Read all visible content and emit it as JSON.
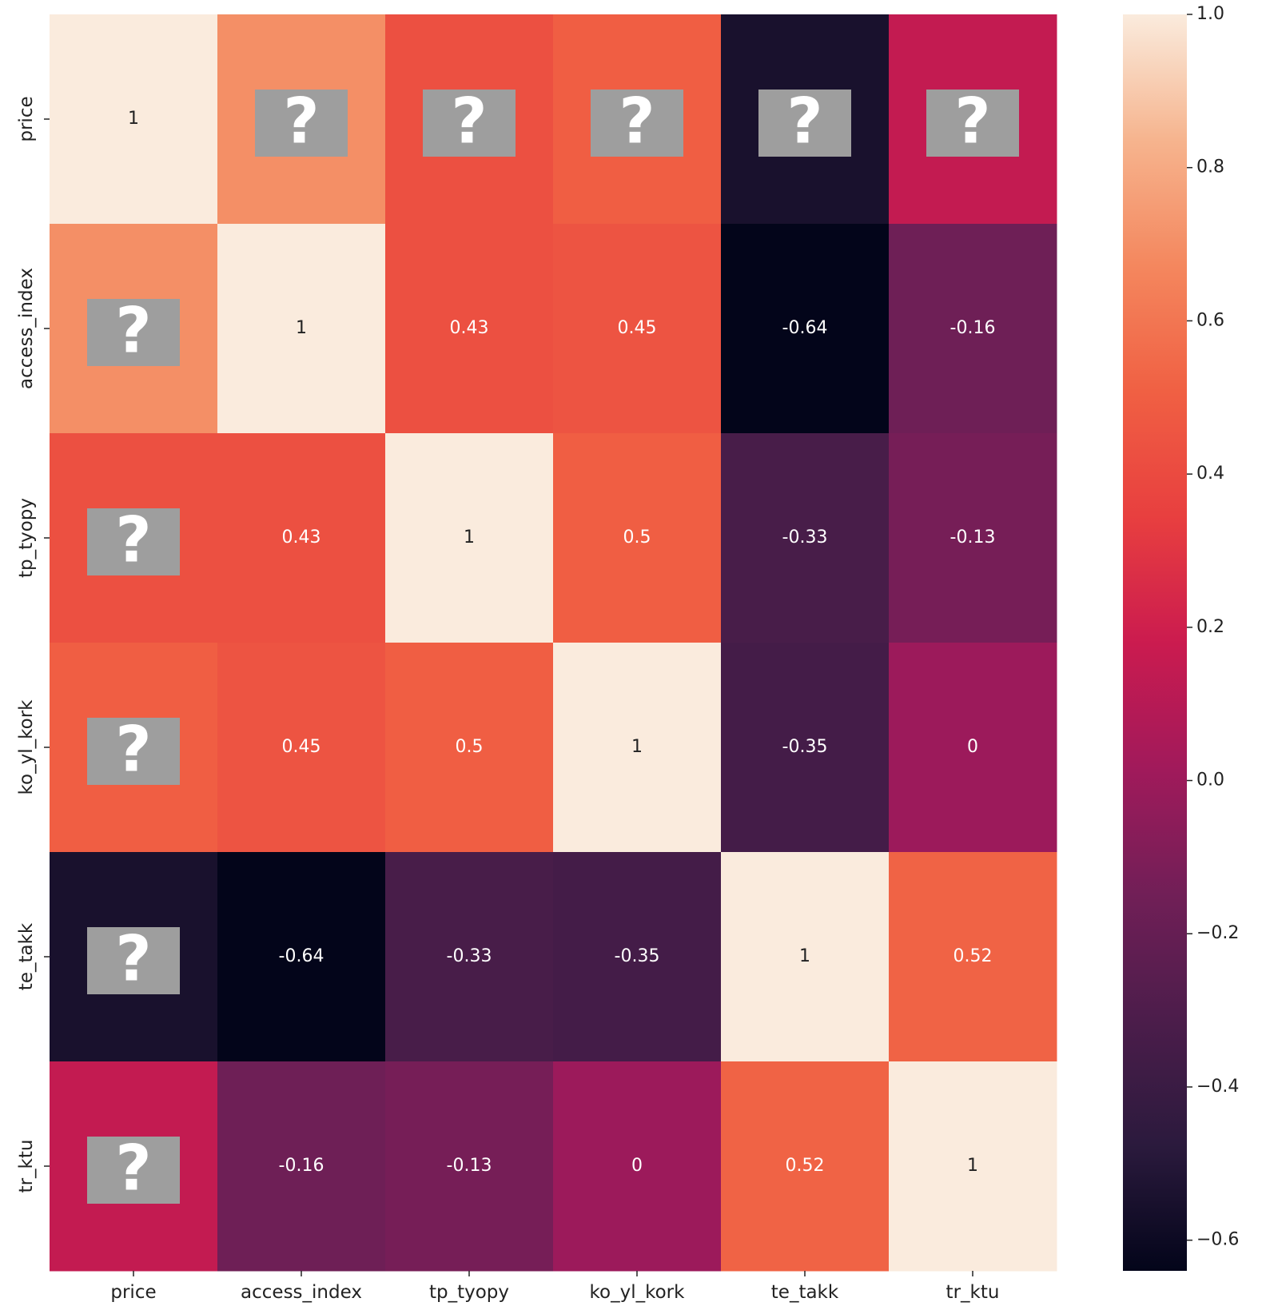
{
  "chart_data": {
    "type": "heatmap",
    "variables": [
      "price",
      "access_index",
      "tp_tyopy",
      "ko_yl_kork",
      "te_takk",
      "tr_ktu"
    ],
    "matrix": [
      [
        1,
        0.7,
        0.43,
        0.5,
        -0.55,
        0.15
      ],
      [
        0.7,
        1,
        0.43,
        0.45,
        -0.64,
        -0.16
      ],
      [
        0.43,
        0.43,
        1,
        0.5,
        -0.33,
        -0.13
      ],
      [
        0.5,
        0.45,
        0.5,
        1,
        -0.35,
        0
      ],
      [
        -0.55,
        -0.64,
        -0.33,
        -0.35,
        1,
        0.52
      ],
      [
        0.15,
        -0.16,
        -0.13,
        0,
        0.52,
        1
      ]
    ],
    "annotations": [
      [
        "1",
        "?",
        "?",
        "?",
        "?",
        "?"
      ],
      [
        "?",
        "1",
        "0.43",
        "0.45",
        "-0.64",
        "-0.16"
      ],
      [
        "?",
        "0.43",
        "1",
        "0.5",
        "-0.33",
        "-0.13"
      ],
      [
        "?",
        "0.45",
        "0.5",
        "1",
        "-0.35",
        "0"
      ],
      [
        "?",
        "-0.64",
        "-0.33",
        "-0.35",
        "1",
        "0.52"
      ],
      [
        "?",
        "-0.16",
        "-0.13",
        "0",
        "0.52",
        "1"
      ]
    ],
    "colorbar": {
      "range": [
        -0.64,
        1
      ],
      "ticks": [
        1.0,
        0.8,
        0.6,
        0.4,
        0.2,
        0.0,
        -0.2,
        -0.4,
        -0.6
      ],
      "tick_labels": [
        "1.0",
        "0.8",
        "0.6",
        "0.4",
        "0.2",
        "0.0",
        "−0.2",
        "−0.4",
        "−0.6"
      ]
    },
    "colormap": "rocket",
    "colormap_stops": [
      "#03051a",
      "#2b1a3d",
      "#4c1d4b",
      "#711f57",
      "#a11a5b",
      "#cb1b4f",
      "#e83f3f",
      "#f06043",
      "#f4875e",
      "#f6b48e",
      "#faebdd"
    ],
    "mask_color": "#9e9e9e",
    "title": "",
    "xlabel": "",
    "ylabel": ""
  }
}
